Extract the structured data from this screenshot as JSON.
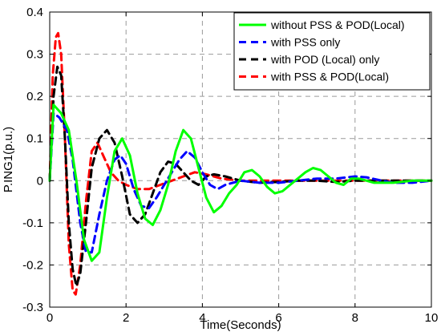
{
  "chart_data": {
    "type": "line",
    "title": "",
    "xlabel": "Time(Seconds)",
    "ylabel": "P.ING1(p.u.)",
    "xlim": [
      0,
      10
    ],
    "ylim": [
      -0.3,
      0.4
    ],
    "xticks": [
      0,
      2,
      4,
      6,
      8,
      10
    ],
    "yticks": [
      -0.3,
      -0.2,
      -0.1,
      0,
      0.1,
      0.2,
      0.3,
      0.4
    ],
    "grid": true,
    "legend_position": "top-right",
    "series": [
      {
        "name": "without PSS & POD(Local)",
        "color": "#00ff00",
        "dash": "solid",
        "points": [
          [
            0,
            0
          ],
          [
            0.1,
            0.18
          ],
          [
            0.3,
            0.16
          ],
          [
            0.5,
            0.12
          ],
          [
            0.7,
            0.0
          ],
          [
            0.9,
            -0.14
          ],
          [
            1.1,
            -0.19
          ],
          [
            1.3,
            -0.17
          ],
          [
            1.5,
            -0.04
          ],
          [
            1.7,
            0.07
          ],
          [
            1.9,
            0.1
          ],
          [
            2.1,
            0.06
          ],
          [
            2.3,
            -0.03
          ],
          [
            2.5,
            -0.09
          ],
          [
            2.7,
            -0.105
          ],
          [
            2.9,
            -0.07
          ],
          [
            3.1,
            -0.01
          ],
          [
            3.3,
            0.07
          ],
          [
            3.5,
            0.12
          ],
          [
            3.7,
            0.1
          ],
          [
            3.9,
            0.03
          ],
          [
            4.1,
            -0.04
          ],
          [
            4.3,
            -0.075
          ],
          [
            4.5,
            -0.06
          ],
          [
            4.7,
            -0.03
          ],
          [
            4.9,
            -0.01
          ],
          [
            5.1,
            0.02
          ],
          [
            5.3,
            0.025
          ],
          [
            5.5,
            0.01
          ],
          [
            5.7,
            -0.015
          ],
          [
            5.9,
            -0.03
          ],
          [
            6.1,
            -0.025
          ],
          [
            6.3,
            -0.01
          ],
          [
            6.5,
            0.005
          ],
          [
            6.7,
            0.02
          ],
          [
            6.9,
            0.03
          ],
          [
            7.1,
            0.025
          ],
          [
            7.3,
            0.01
          ],
          [
            7.5,
            -0.005
          ],
          [
            7.7,
            -0.01
          ],
          [
            7.9,
            0.005
          ],
          [
            8.1,
            0.005
          ],
          [
            8.5,
            -0.005
          ],
          [
            9.0,
            -0.005
          ],
          [
            9.5,
            0.0
          ],
          [
            10,
            0.0
          ]
        ]
      },
      {
        "name": "with PSS only",
        "color": "#0000ff",
        "dash": "dashed",
        "points": [
          [
            0,
            0
          ],
          [
            0.1,
            0.16
          ],
          [
            0.25,
            0.15
          ],
          [
            0.45,
            0.12
          ],
          [
            0.6,
            0.05
          ],
          [
            0.8,
            -0.1
          ],
          [
            0.95,
            -0.17
          ],
          [
            1.1,
            -0.17
          ],
          [
            1.3,
            -0.08
          ],
          [
            1.5,
            0.0
          ],
          [
            1.7,
            0.05
          ],
          [
            1.85,
            0.06
          ],
          [
            2.0,
            0.04
          ],
          [
            2.2,
            -0.02
          ],
          [
            2.4,
            -0.06
          ],
          [
            2.6,
            -0.065
          ],
          [
            2.8,
            -0.04
          ],
          [
            3.0,
            -0.01
          ],
          [
            3.2,
            0.02
          ],
          [
            3.4,
            0.05
          ],
          [
            3.6,
            0.07
          ],
          [
            3.8,
            0.055
          ],
          [
            4.0,
            0.02
          ],
          [
            4.2,
            -0.01
          ],
          [
            4.4,
            -0.02
          ],
          [
            4.6,
            -0.01
          ],
          [
            5.0,
            0.0
          ],
          [
            5.5,
            -0.005
          ],
          [
            6.0,
            -0.005
          ],
          [
            6.5,
            0.0
          ],
          [
            7.0,
            0.005
          ],
          [
            7.5,
            0.005
          ],
          [
            8.0,
            0.01
          ],
          [
            8.3,
            0.008
          ],
          [
            8.7,
            0.0
          ],
          [
            9.0,
            -0.005
          ],
          [
            9.5,
            -0.005
          ],
          [
            10,
            0.0
          ]
        ]
      },
      {
        "name": "with POD (Local) only",
        "color": "#000000",
        "dash": "dashed",
        "points": [
          [
            0,
            0
          ],
          [
            0.1,
            0.2
          ],
          [
            0.2,
            0.27
          ],
          [
            0.3,
            0.25
          ],
          [
            0.4,
            0.1
          ],
          [
            0.5,
            -0.1
          ],
          [
            0.6,
            -0.21
          ],
          [
            0.7,
            -0.25
          ],
          [
            0.8,
            -0.22
          ],
          [
            0.95,
            -0.1
          ],
          [
            1.1,
            0.03
          ],
          [
            1.3,
            0.1
          ],
          [
            1.5,
            0.12
          ],
          [
            1.7,
            0.09
          ],
          [
            1.9,
            0.01
          ],
          [
            2.1,
            -0.08
          ],
          [
            2.3,
            -0.1
          ],
          [
            2.5,
            -0.08
          ],
          [
            2.7,
            -0.03
          ],
          [
            2.9,
            0.02
          ],
          [
            3.1,
            0.045
          ],
          [
            3.3,
            0.04
          ],
          [
            3.5,
            0.02
          ],
          [
            3.7,
            0.0
          ],
          [
            3.9,
            -0.01
          ],
          [
            4.1,
            0.01
          ],
          [
            4.3,
            0.015
          ],
          [
            4.6,
            0.01
          ],
          [
            5.0,
            0.0
          ],
          [
            5.5,
            -0.005
          ],
          [
            6.0,
            -0.003
          ],
          [
            6.5,
            0.0
          ],
          [
            7.0,
            0.0
          ],
          [
            7.5,
            -0.003
          ],
          [
            8.0,
            0.0
          ],
          [
            9.0,
            0.0
          ],
          [
            10,
            0.0
          ]
        ]
      },
      {
        "name": "with PSS & POD(Local)",
        "color": "#ff0000",
        "dash": "dashed",
        "points": [
          [
            0,
            0
          ],
          [
            0.08,
            0.25
          ],
          [
            0.16,
            0.34
          ],
          [
            0.22,
            0.35
          ],
          [
            0.3,
            0.3
          ],
          [
            0.4,
            0.1
          ],
          [
            0.5,
            -0.15
          ],
          [
            0.6,
            -0.26
          ],
          [
            0.68,
            -0.27
          ],
          [
            0.8,
            -0.2
          ],
          [
            0.95,
            -0.05
          ],
          [
            1.1,
            0.07
          ],
          [
            1.25,
            0.09
          ],
          [
            1.4,
            0.06
          ],
          [
            1.6,
            0.02
          ],
          [
            1.8,
            0.0
          ],
          [
            2.0,
            -0.01
          ],
          [
            2.3,
            -0.02
          ],
          [
            2.6,
            -0.02
          ],
          [
            2.9,
            -0.01
          ],
          [
            3.2,
            0.0
          ],
          [
            3.5,
            0.01
          ],
          [
            3.8,
            0.02
          ],
          [
            4.1,
            0.015
          ],
          [
            4.5,
            0.005
          ],
          [
            5.0,
            0.0
          ],
          [
            6.0,
            0.0
          ],
          [
            7.0,
            0.0
          ],
          [
            8.0,
            0.0
          ],
          [
            9.0,
            0.0
          ],
          [
            10,
            0.0
          ]
        ]
      }
    ]
  }
}
